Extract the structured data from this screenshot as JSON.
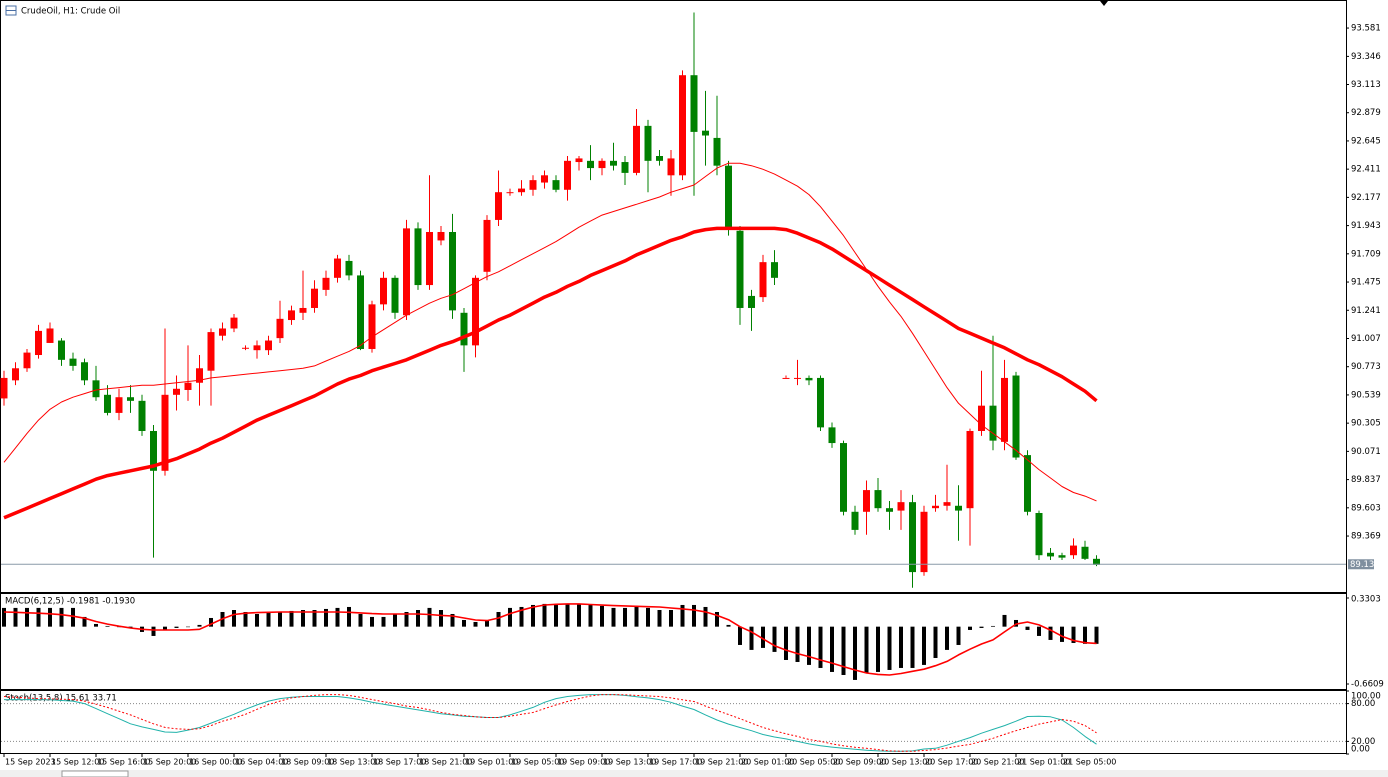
{
  "chart_data": [
    {
      "type": "candlestick",
      "title": "CrudeOil, H1:  Crude Oil",
      "categories": [
        "15 Sep 2023",
        null,
        null,
        null,
        "15 Sep 12:00",
        null,
        null,
        null,
        "15 Sep 16:00",
        null,
        null,
        null,
        "15 Sep 20:00",
        null,
        null,
        null,
        "16 Sep 00:00",
        null,
        null,
        null,
        "16 Sep 04:00",
        null,
        null,
        null,
        "18 Sep 09:00",
        null,
        null,
        null,
        "18 Sep 13:00",
        null,
        null,
        null,
        "18 Sep 17:00",
        null,
        null,
        null,
        "18 Sep 21:00",
        null,
        null,
        null,
        "19 Sep 01:00",
        null,
        null,
        null,
        "19 Sep 05:00",
        null,
        null,
        null,
        "19 Sep 09:00",
        null,
        null,
        null,
        "19 Sep 13:00",
        null,
        null,
        null,
        "19 Sep 17:00",
        null,
        null,
        null,
        "19 Sep 21:00",
        null,
        null,
        null,
        "20 Sep 01:00",
        null,
        null,
        null,
        "20 Sep 05:00",
        null,
        null,
        null,
        "20 Sep 09:00",
        null,
        null,
        null,
        "20 Sep 13:00",
        null,
        null,
        null,
        "20 Sep 17:00",
        null,
        null,
        null,
        "20 Sep 21:00",
        null,
        null,
        null,
        "21 Sep 01:00",
        null,
        null,
        null,
        "21 Sep 05:00",
        null,
        null,
        null
      ],
      "open": [
        90.51,
        90.66,
        90.76,
        90.87,
        90.97,
        90.99,
        90.84,
        90.81,
        90.66,
        90.54,
        90.39,
        90.52,
        90.49,
        90.24,
        89.91,
        90.54,
        90.58,
        90.64,
        90.74,
        91.03,
        91.09,
        90.93,
        90.91,
        90.91,
        91.01,
        91.16,
        91.22,
        91.26,
        91.41,
        91.51,
        91.65,
        91.53,
        90.92,
        91.29,
        91.51,
        91.2,
        91.92,
        91.45,
        91.82,
        91.89,
        91.22,
        90.95,
        91.56,
        91.99,
        92.22,
        92.22,
        92.24,
        92.3,
        92.32,
        92.24,
        92.47,
        92.48,
        92.42,
        92.48,
        92.47,
        92.38,
        92.77,
        92.52,
        92.36,
        92.36,
        93.19,
        92.73,
        92.67,
        92.44,
        91.9,
        91.36,
        91.35,
        91.64,
        90.68,
        90.68,
        90.68,
        90.68,
        90.27,
        90.14,
        89.57,
        89.57,
        89.75,
        89.6,
        89.58,
        89.65,
        89.07,
        89.6,
        89.62,
        89.62,
        89.6,
        90.24,
        90.45,
        90.15,
        90.7,
        90.04,
        89.56,
        89.23,
        89.21,
        89.21,
        89.28,
        89.18
      ],
      "high": [
        90.74,
        90.81,
        90.92,
        91.12,
        91.14,
        91.01,
        90.89,
        90.84,
        90.78,
        90.62,
        90.59,
        90.62,
        90.54,
        90.29,
        91.09,
        90.7,
        90.95,
        90.87,
        91.09,
        91.14,
        91.21,
        90.95,
        90.99,
        91.03,
        91.32,
        91.28,
        91.57,
        91.49,
        91.57,
        91.7,
        91.7,
        91.57,
        91.32,
        91.56,
        91.53,
        91.99,
        91.97,
        92.36,
        91.94,
        92.04,
        91.26,
        91.53,
        92.03,
        92.4,
        92.25,
        92.32,
        92.36,
        92.4,
        92.36,
        92.52,
        92.52,
        92.61,
        92.5,
        92.63,
        92.52,
        92.91,
        92.82,
        92.57,
        92.57,
        93.23,
        93.71,
        93.06,
        93.02,
        92.48,
        91.94,
        91.41,
        91.7,
        91.74,
        90.7,
        90.83,
        90.7,
        90.7,
        90.31,
        90.16,
        89.62,
        89.83,
        89.85,
        89.66,
        89.75,
        89.71,
        89.62,
        89.71,
        89.96,
        89.79,
        90.26,
        90.74,
        91.03,
        90.83,
        90.73,
        90.08,
        89.58,
        89.27,
        89.23,
        89.35,
        89.33,
        89.21
      ],
      "low": [
        90.45,
        90.62,
        90.73,
        90.84,
        90.97,
        90.78,
        90.74,
        90.62,
        90.49,
        90.37,
        90.33,
        90.39,
        90.2,
        89.19,
        89.87,
        90.41,
        90.49,
        90.45,
        90.45,
        90.99,
        91.06,
        90.91,
        90.84,
        90.87,
        90.97,
        91.12,
        91.16,
        91.22,
        91.36,
        91.47,
        91.49,
        90.91,
        90.89,
        91.24,
        91.17,
        91.16,
        91.41,
        91.41,
        91.78,
        91.17,
        90.73,
        90.85,
        91.49,
        91.94,
        92.19,
        92.19,
        92.19,
        92.25,
        92.22,
        92.15,
        92.4,
        92.32,
        92.36,
        92.4,
        92.28,
        92.36,
        92.22,
        92.44,
        92.19,
        92.32,
        92.19,
        92.44,
        92.36,
        91.86,
        91.12,
        91.07,
        91.31,
        91.45,
        90.68,
        90.62,
        90.62,
        90.24,
        90.1,
        89.54,
        89.38,
        89.38,
        89.57,
        89.42,
        89.42,
        88.94,
        89.04,
        89.57,
        89.58,
        89.33,
        89.29,
        90.2,
        90.08,
        90.08,
        90.0,
        89.54,
        89.17,
        89.17,
        89.17,
        89.18,
        89.17,
        89.12
      ],
      "close": [
        90.68,
        90.76,
        90.89,
        91.07,
        91.09,
        90.83,
        90.78,
        90.66,
        90.52,
        90.39,
        90.52,
        90.49,
        90.24,
        89.91,
        90.54,
        90.59,
        90.64,
        90.76,
        91.06,
        91.09,
        91.18,
        90.93,
        90.95,
        90.99,
        91.17,
        91.24,
        91.26,
        91.42,
        91.51,
        91.67,
        91.53,
        90.92,
        91.29,
        91.51,
        91.22,
        91.92,
        91.45,
        91.89,
        91.89,
        91.24,
        90.95,
        91.51,
        91.99,
        92.22,
        92.22,
        92.25,
        92.32,
        92.36,
        92.24,
        92.48,
        92.5,
        92.42,
        92.48,
        92.44,
        92.38,
        92.77,
        92.48,
        92.48,
        92.5,
        93.19,
        92.72,
        92.69,
        92.44,
        91.92,
        91.26,
        91.26,
        91.64,
        91.51,
        90.68,
        90.68,
        90.66,
        90.27,
        90.14,
        89.57,
        89.42,
        89.75,
        89.6,
        89.57,
        89.65,
        89.07,
        89.57,
        89.62,
        89.65,
        89.58,
        90.24,
        90.45,
        90.16,
        90.68,
        90.02,
        89.57,
        89.21,
        89.2,
        89.19,
        89.29,
        89.18,
        89.13
      ],
      "up_color": "#ff0000",
      "down_color": "#008000",
      "series": [
        {
          "color": "#ff0000",
          "weight": "thin",
          "values": [
            89.98,
            90.1,
            90.22,
            90.33,
            90.42,
            90.48,
            90.52,
            90.55,
            90.58,
            90.59,
            90.6,
            90.61,
            90.62,
            90.62,
            90.63,
            90.64,
            90.65,
            90.66,
            90.68,
            90.69,
            90.7,
            90.71,
            90.72,
            90.73,
            90.74,
            90.75,
            90.76,
            90.78,
            90.82,
            90.86,
            90.9,
            90.95,
            91.02,
            91.08,
            91.14,
            91.2,
            91.25,
            91.3,
            91.34,
            91.37,
            91.42,
            91.47,
            91.52,
            91.56,
            91.61,
            91.66,
            91.71,
            91.76,
            91.81,
            91.87,
            91.93,
            91.98,
            92.03,
            92.06,
            92.09,
            92.12,
            92.15,
            92.18,
            92.22,
            92.25,
            92.28,
            92.35,
            92.42,
            92.46,
            92.46,
            92.44,
            92.41,
            92.37,
            92.32,
            92.27,
            92.2,
            92.1,
            91.98,
            91.86,
            91.72,
            91.58,
            91.44,
            91.31,
            91.19,
            91.05,
            90.9,
            90.75,
            90.6,
            90.47,
            90.38,
            90.29,
            90.22,
            90.15,
            90.08,
            90.0,
            89.92,
            89.85,
            89.78,
            89.73,
            89.7,
            89.66
          ]
        },
        {
          "color": "#ff0000",
          "weight": "bold",
          "values": [
            89.52,
            89.56,
            89.6,
            89.64,
            89.68,
            89.72,
            89.76,
            89.8,
            89.84,
            89.87,
            89.89,
            89.91,
            89.93,
            89.95,
            89.98,
            90.01,
            90.05,
            90.09,
            90.14,
            90.18,
            90.23,
            90.28,
            90.33,
            90.37,
            90.41,
            90.45,
            90.49,
            90.53,
            90.58,
            90.63,
            90.67,
            90.7,
            90.74,
            90.77,
            90.8,
            90.83,
            90.87,
            90.91,
            90.95,
            90.98,
            91.02,
            91.06,
            91.11,
            91.16,
            91.2,
            91.25,
            91.3,
            91.35,
            91.39,
            91.44,
            91.48,
            91.53,
            91.57,
            91.61,
            91.65,
            91.7,
            91.74,
            91.78,
            91.82,
            91.85,
            91.89,
            91.91,
            91.92,
            91.92,
            91.92,
            91.92,
            91.92,
            91.92,
            91.91,
            91.88,
            91.84,
            91.8,
            91.75,
            91.69,
            91.63,
            91.57,
            91.51,
            91.45,
            91.39,
            91.33,
            91.27,
            91.21,
            91.15,
            91.09,
            91.05,
            91.01,
            90.97,
            90.93,
            90.88,
            90.83,
            90.79,
            90.74,
            90.69,
            90.63,
            90.57,
            90.49
          ]
        }
      ],
      "last_price": 89.135,
      "ylim": [
        88.905,
        93.797
      ],
      "yticks": [
        93.581,
        93.346,
        93.113,
        92.879,
        92.645,
        92.411,
        92.177,
        91.943,
        91.709,
        91.475,
        91.241,
        91.007,
        90.773,
        90.539,
        90.305,
        90.071,
        89.837,
        89.603,
        89.369
      ],
      "grid": false
    },
    {
      "type": "macd",
      "title": "MACD(6,12,5) -0.1981 -0.1930",
      "color": "#000000",
      "values": [
        0.216,
        0.216,
        0.216,
        0.216,
        0.216,
        0.216,
        0.216,
        0.112,
        0.031,
        0.008,
        -0.003,
        -0.015,
        -0.061,
        -0.107,
        -0.038,
        -0.015,
        -0.003,
        0.02,
        0.1,
        0.169,
        0.192,
        0.169,
        0.146,
        0.169,
        0.169,
        0.181,
        0.192,
        0.192,
        0.204,
        0.216,
        0.227,
        0.146,
        0.112,
        0.112,
        0.146,
        0.169,
        0.192,
        0.216,
        0.192,
        0.146,
        0.077,
        0.054,
        0.077,
        0.169,
        0.216,
        0.227,
        0.25,
        0.262,
        0.25,
        0.262,
        0.262,
        0.25,
        0.239,
        0.216,
        0.216,
        0.239,
        0.216,
        0.192,
        0.192,
        0.25,
        0.25,
        0.227,
        0.169,
        0.02,
        -0.211,
        -0.268,
        -0.245,
        -0.291,
        -0.384,
        -0.407,
        -0.441,
        -0.476,
        -0.522,
        -0.557,
        -0.614,
        -0.534,
        -0.522,
        -0.499,
        -0.476,
        -0.476,
        -0.441,
        -0.361,
        -0.268,
        -0.211,
        -0.038,
        -0.015,
        0.008,
        0.135,
        0.077,
        -0.038,
        -0.107,
        -0.153,
        -0.176,
        -0.188,
        -0.198,
        -0.1981
      ],
      "series": [
        {
          "color": "#ff0000",
          "values": [
            0.169,
            0.165,
            0.16,
            0.155,
            0.148,
            0.138,
            0.12,
            0.098,
            0.06,
            0.03,
            0.005,
            -0.015,
            -0.03,
            -0.038,
            -0.038,
            -0.038,
            -0.038,
            -0.03,
            0.03,
            0.09,
            0.14,
            0.155,
            0.162,
            0.166,
            0.169,
            0.169,
            0.169,
            0.169,
            0.169,
            0.169,
            0.165,
            0.158,
            0.15,
            0.146,
            0.146,
            0.146,
            0.146,
            0.14,
            0.13,
            0.123,
            0.1,
            0.077,
            0.07,
            0.1,
            0.15,
            0.19,
            0.225,
            0.25,
            0.258,
            0.262,
            0.262,
            0.255,
            0.248,
            0.243,
            0.239,
            0.235,
            0.23,
            0.227,
            0.215,
            0.205,
            0.192,
            0.17,
            0.13,
            0.08,
            0.0,
            -0.06,
            -0.14,
            -0.22,
            -0.27,
            -0.31,
            -0.345,
            -0.384,
            -0.42,
            -0.46,
            -0.5,
            -0.534,
            -0.55,
            -0.557,
            -0.54,
            -0.515,
            -0.49,
            -0.45,
            -0.4,
            -0.326,
            -0.26,
            -0.2,
            -0.153,
            -0.06,
            0.03,
            0.054,
            0.02,
            -0.04,
            -0.11,
            -0.16,
            -0.185,
            -0.193
          ]
        }
      ],
      "ylim": [
        -0.7185,
        0.3764
      ],
      "yticks": [
        0.3303,
        -0.6609
      ]
    },
    {
      "type": "stochastic",
      "title": "Stoch(13,5,8) 15.61 33.71",
      "series": [
        {
          "color": "#20b2aa",
          "dash": false,
          "values": [
            86.4,
            86.4,
            86.4,
            86.4,
            86.0,
            85.0,
            84.0,
            80.0,
            72.0,
            64.0,
            56.0,
            48.0,
            43.0,
            39.0,
            35.0,
            34.3,
            38.0,
            42.0,
            49.0,
            56.0,
            63.0,
            71.0,
            78.0,
            84.0,
            88.0,
            90.0,
            91.2,
            91.2,
            91.2,
            91.2,
            89.0,
            86.0,
            82.0,
            79.0,
            76.0,
            73.0,
            70.0,
            67.0,
            64.0,
            62.0,
            60.0,
            59.0,
            58.0,
            58.0,
            62.0,
            68.0,
            74.0,
            82.0,
            88.0,
            91.2,
            93.0,
            94.3,
            94.3,
            94.3,
            93.0,
            91.0,
            89.0,
            86.4,
            82.0,
            76.0,
            70.6,
            62.0,
            54.0,
            47.4,
            42.0,
            37.0,
            31.0,
            27.0,
            24.0,
            20.0,
            16.0,
            13.0,
            11.0,
            9.0,
            7.4,
            6.0,
            5.0,
            4.3,
            4.3,
            5.0,
            8.0,
            9.0,
            14.0,
            20.2,
            26.0,
            33.0,
            39.0,
            45.0,
            52.0,
            59.6,
            60.0,
            59.0,
            54.0,
            42.0,
            28.0,
            15.61
          ]
        },
        {
          "color": "#ff0000",
          "dash": true,
          "values": [
            91.2,
            90.0,
            89.0,
            88.0,
            87.5,
            87.0,
            86.4,
            84.0,
            79.0,
            74.0,
            68.0,
            62.0,
            55.0,
            48.0,
            42.2,
            40.0,
            39.0,
            40.0,
            45.0,
            52.0,
            57.0,
            63.0,
            71.0,
            78.5,
            84.0,
            89.0,
            91.2,
            93.0,
            94.3,
            94.3,
            93.0,
            90.0,
            86.4,
            83.0,
            80.0,
            76.0,
            73.8,
            70.0,
            66.0,
            63.0,
            61.1,
            59.0,
            58.0,
            58.0,
            60.0,
            63.0,
            65.9,
            72.0,
            78.0,
            83.3,
            88.0,
            92.0,
            94.3,
            94.3,
            94.0,
            93.0,
            92.0,
            91.2,
            89.0,
            86.0,
            83.3,
            76.0,
            69.0,
            62.7,
            56.0,
            49.0,
            42.0,
            37.0,
            32.0,
            28.0,
            23.0,
            20.2,
            16.0,
            13.0,
            10.6,
            9.0,
            7.0,
            5.0,
            4.3,
            4.3,
            5.5,
            7.0,
            9.5,
            12.5,
            15.3,
            20.0,
            25.0,
            31.1,
            37.0,
            42.0,
            47.4,
            51.0,
            54.8,
            52.0,
            45.0,
            33.71
          ]
        }
      ],
      "ylim": [
        0,
        100
      ],
      "yticks": [
        {
          "value": 100,
          "label": "100.00"
        },
        {
          "value": 80,
          "label": "80.00"
        },
        {
          "value": 20,
          "label": "20.00"
        },
        {
          "value": 0,
          "label": "0.00"
        }
      ]
    }
  ]
}
